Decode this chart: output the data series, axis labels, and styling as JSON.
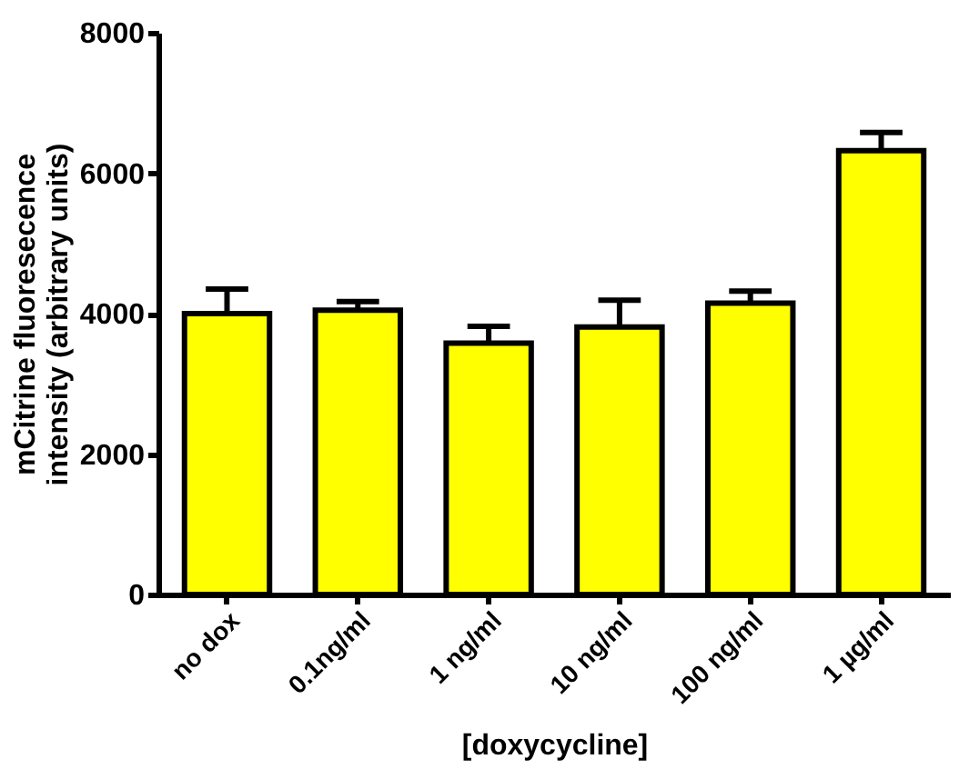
{
  "chart_data": {
    "type": "bar",
    "xlabel": "[doxycycline]",
    "ylabel": "mCitrine fluoresecence intensity (arbitrary units)",
    "categories": [
      "no dox",
      "0.1ng/ml",
      "1 ng/ml",
      "10 ng/ml",
      "100 ng/ml",
      "1 µg/ml"
    ],
    "values": [
      4000,
      4050,
      3580,
      3810,
      4150,
      6320
    ],
    "errors": [
      [
        4000,
        4350
      ],
      [
        4050,
        4170
      ],
      [
        3580,
        3820
      ],
      [
        3810,
        4190
      ],
      [
        4150,
        4320
      ],
      [
        6320,
        6580
      ]
    ],
    "color": "#ffff00",
    "ylim": [
      0,
      8000
    ],
    "yticks": [
      0,
      2000,
      4000,
      6000,
      8000
    ],
    "grid": false
  }
}
